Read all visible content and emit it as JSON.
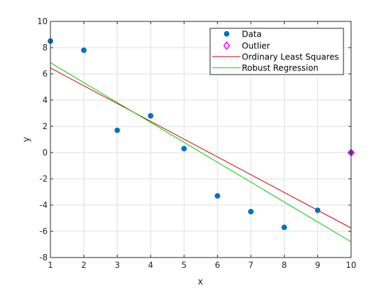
{
  "chart_data": {
    "type": "scatter",
    "xlabel": "x",
    "ylabel": "y",
    "xlim": [
      1,
      10
    ],
    "ylim": [
      -8,
      10
    ],
    "xticks": [
      1,
      2,
      3,
      4,
      5,
      6,
      7,
      8,
      9,
      10
    ],
    "yticks": [
      -8,
      -6,
      -4,
      -2,
      0,
      2,
      4,
      6,
      8,
      10
    ],
    "grid": true,
    "legend_position": "top-right",
    "series": [
      {
        "name": "Data",
        "kind": "points",
        "marker": "filled-circle",
        "color": "#0072bd",
        "points": [
          [
            1,
            8.5
          ],
          [
            2,
            7.8
          ],
          [
            3,
            1.7
          ],
          [
            4,
            2.8
          ],
          [
            5,
            0.3
          ],
          [
            6,
            -3.3
          ],
          [
            7,
            -4.5
          ],
          [
            8,
            -5.7
          ],
          [
            9,
            -4.4
          ],
          [
            10,
            0
          ]
        ]
      },
      {
        "name": "Outlier",
        "kind": "points",
        "marker": "open-diamond",
        "color": "#ff00ff",
        "points": [
          [
            10,
            0
          ]
        ]
      },
      {
        "name": "Ordinary Least Squares",
        "kind": "line",
        "color": "#d00000",
        "points": [
          [
            1,
            6.45
          ],
          [
            10,
            -5.75
          ]
        ]
      },
      {
        "name": "Robust Regression",
        "kind": "line",
        "color": "#00d000",
        "points": [
          [
            1,
            6.85
          ],
          [
            10,
            -6.8
          ]
        ]
      }
    ]
  }
}
